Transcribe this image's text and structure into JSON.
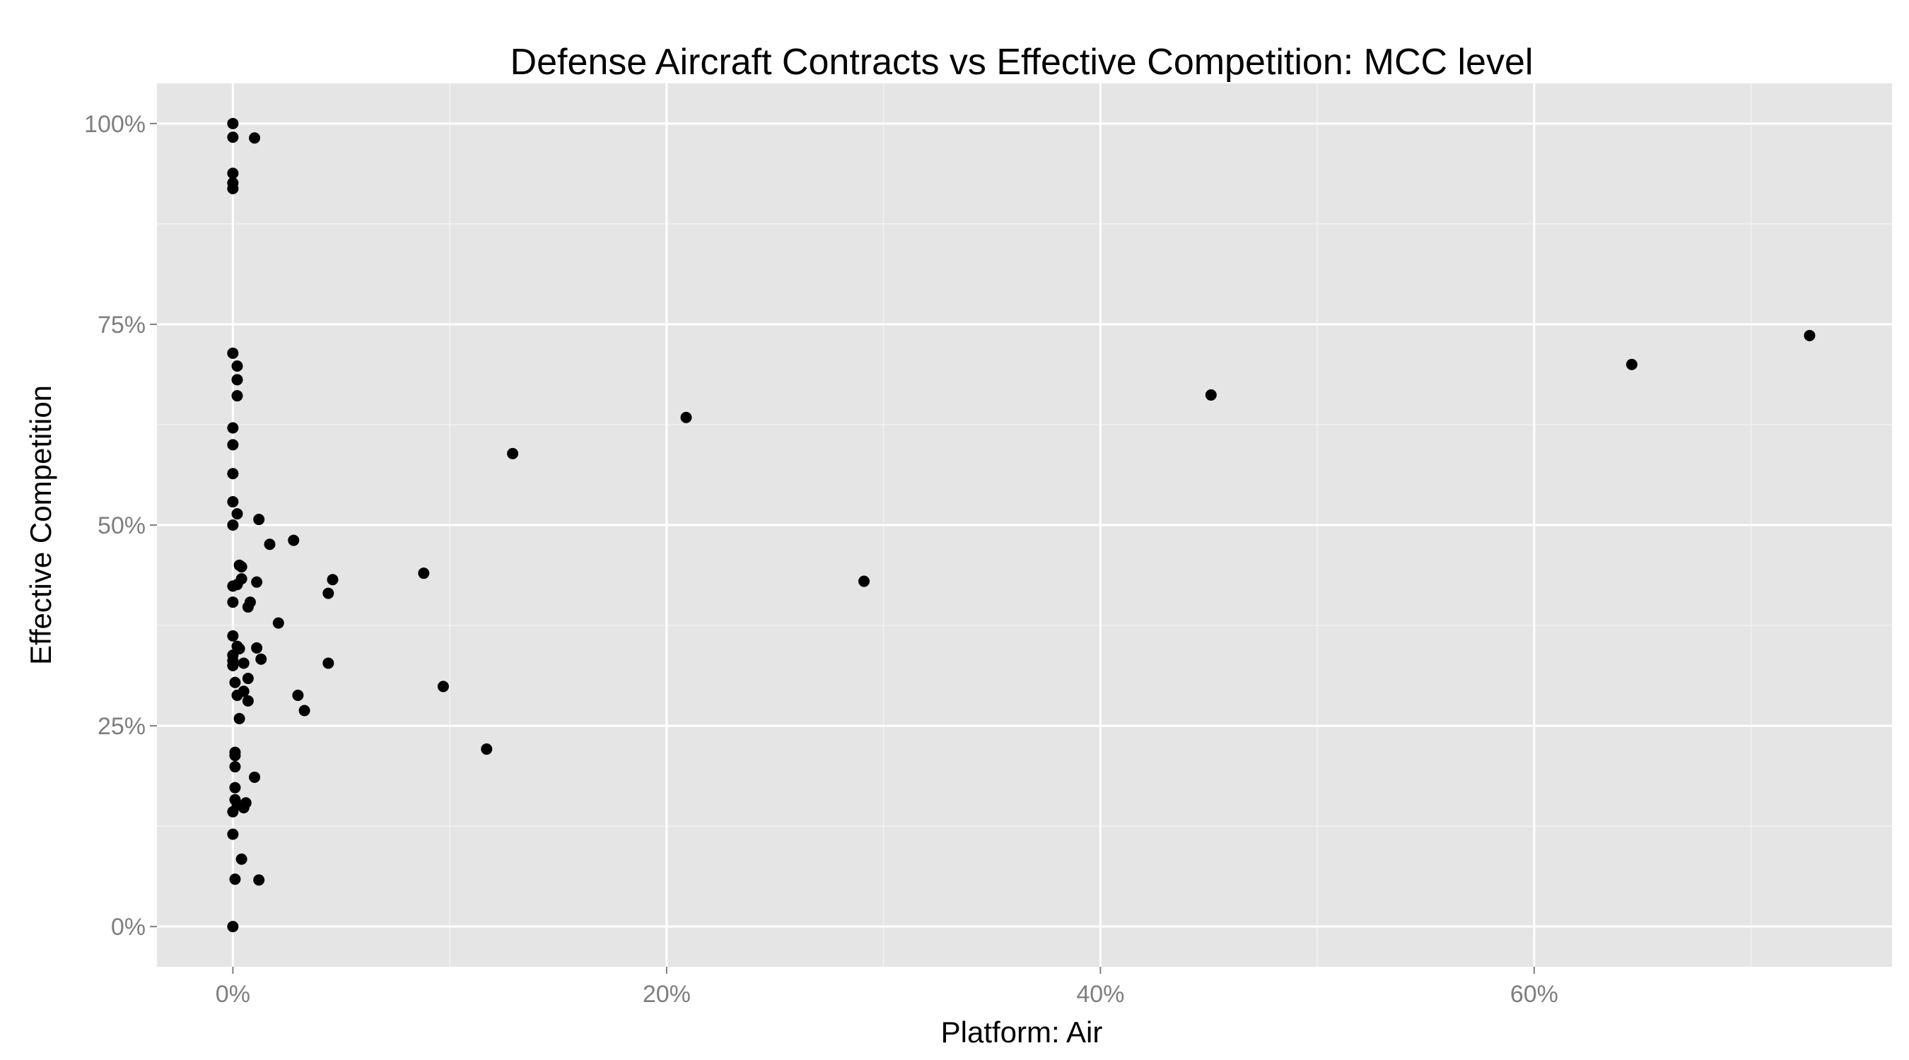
{
  "chart_data": {
    "type": "scatter",
    "title": "Defense Aircraft Contracts vs Effective Competition: MCC level",
    "xlabel": "Platform: Air",
    "ylabel": "Effective Competition",
    "xlim": [
      -3.5,
      76.5
    ],
    "ylim": [
      -5,
      105
    ],
    "x_ticks": [
      0,
      20,
      40,
      60
    ],
    "x_tick_labels": [
      "0%",
      "20%",
      "40%",
      "60%"
    ],
    "y_ticks": [
      0,
      25,
      50,
      75,
      100
    ],
    "y_tick_labels": [
      "0%",
      "25%",
      "50%",
      "75%",
      "100%"
    ],
    "grid": true,
    "legend": "none",
    "colors": {
      "panel": "#e5e5e5",
      "grid_major": "#ffffff",
      "grid_minor": "#f2f2f2",
      "point": "#000000",
      "tick_label": "#7f7f7f"
    },
    "points": [
      {
        "x": 0.0,
        "y": 100.0
      },
      {
        "x": 0.0,
        "y": 98.3
      },
      {
        "x": 1.0,
        "y": 98.2
      },
      {
        "x": 0.0,
        "y": 93.8
      },
      {
        "x": 0.0,
        "y": 92.6
      },
      {
        "x": 0.0,
        "y": 91.9
      },
      {
        "x": 0.0,
        "y": 71.4
      },
      {
        "x": 0.2,
        "y": 69.8
      },
      {
        "x": 0.2,
        "y": 68.1
      },
      {
        "x": 0.2,
        "y": 66.1
      },
      {
        "x": 0.0,
        "y": 62.1
      },
      {
        "x": 0.0,
        "y": 60.0
      },
      {
        "x": 0.0,
        "y": 56.4
      },
      {
        "x": 0.0,
        "y": 52.9
      },
      {
        "x": 0.2,
        "y": 51.4
      },
      {
        "x": 0.0,
        "y": 50.0
      },
      {
        "x": 1.2,
        "y": 50.7
      },
      {
        "x": 2.8,
        "y": 48.1
      },
      {
        "x": 1.7,
        "y": 47.6
      },
      {
        "x": 0.3,
        "y": 45.0
      },
      {
        "x": 0.4,
        "y": 44.8
      },
      {
        "x": 0.4,
        "y": 43.3
      },
      {
        "x": 1.1,
        "y": 42.9
      },
      {
        "x": 0.0,
        "y": 42.4
      },
      {
        "x": 0.2,
        "y": 42.6
      },
      {
        "x": 4.6,
        "y": 43.2
      },
      {
        "x": 4.4,
        "y": 41.5
      },
      {
        "x": 0.0,
        "y": 40.4
      },
      {
        "x": 0.8,
        "y": 40.4
      },
      {
        "x": 0.7,
        "y": 39.8
      },
      {
        "x": 2.1,
        "y": 37.8
      },
      {
        "x": 0.0,
        "y": 36.2
      },
      {
        "x": 0.2,
        "y": 34.9
      },
      {
        "x": 0.3,
        "y": 34.6
      },
      {
        "x": 1.1,
        "y": 34.7
      },
      {
        "x": 0.0,
        "y": 33.8
      },
      {
        "x": 0.0,
        "y": 33.1
      },
      {
        "x": 1.3,
        "y": 33.3
      },
      {
        "x": 0.0,
        "y": 32.5
      },
      {
        "x": 0.5,
        "y": 32.8
      },
      {
        "x": 4.4,
        "y": 32.8
      },
      {
        "x": 0.7,
        "y": 30.9
      },
      {
        "x": 0.1,
        "y": 30.4
      },
      {
        "x": 9.7,
        "y": 29.9
      },
      {
        "x": 0.5,
        "y": 29.3
      },
      {
        "x": 0.2,
        "y": 28.8
      },
      {
        "x": 3.0,
        "y": 28.8
      },
      {
        "x": 0.7,
        "y": 28.1
      },
      {
        "x": 3.3,
        "y": 26.9
      },
      {
        "x": 0.3,
        "y": 25.9
      },
      {
        "x": 11.7,
        "y": 22.1
      },
      {
        "x": 0.1,
        "y": 21.7
      },
      {
        "x": 0.1,
        "y": 21.3
      },
      {
        "x": 0.1,
        "y": 19.9
      },
      {
        "x": 1.0,
        "y": 18.6
      },
      {
        "x": 0.1,
        "y": 17.3
      },
      {
        "x": 0.1,
        "y": 15.8
      },
      {
        "x": 0.2,
        "y": 15.2
      },
      {
        "x": 0.6,
        "y": 15.4
      },
      {
        "x": 0.5,
        "y": 14.8
      },
      {
        "x": 0.0,
        "y": 14.3
      },
      {
        "x": 0.0,
        "y": 11.5
      },
      {
        "x": 0.4,
        "y": 8.4
      },
      {
        "x": 0.1,
        "y": 5.9
      },
      {
        "x": 1.2,
        "y": 5.8
      },
      {
        "x": 0.0,
        "y": 0.0
      },
      {
        "x": 8.8,
        "y": 44.0
      },
      {
        "x": 12.9,
        "y": 58.9
      },
      {
        "x": 20.9,
        "y": 63.4
      },
      {
        "x": 29.1,
        "y": 43.0
      },
      {
        "x": 45.1,
        "y": 66.2
      },
      {
        "x": 64.5,
        "y": 70.0
      },
      {
        "x": 72.7,
        "y": 73.6
      }
    ]
  }
}
